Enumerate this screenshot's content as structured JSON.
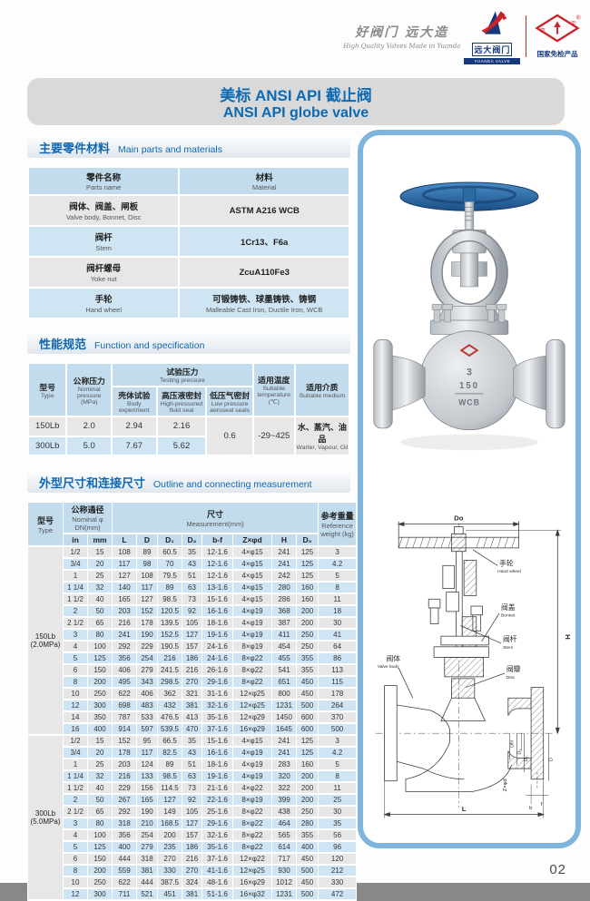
{
  "page": {
    "number": "02",
    "slogan_cn": "好阀门 远大造",
    "slogan_en": "High Quality Valves Made in Yuanda",
    "logo1_cn": "远大阀门",
    "logo1_en": "YUANDA VALVE",
    "logo2_text": "国家免检产品",
    "logo2_reg": "®",
    "title_cn": "美标 ANSI API 截止阀",
    "title_en": "ANSI API globe valve"
  },
  "colors": {
    "accent_blue": "#1068b0",
    "table_header_bg": "#c2dcee",
    "row_blue": "#cfe5f3",
    "row_gray": "#e7e7e7",
    "panel_border": "#7fb5dc",
    "title_bar_bg": "#d9d9d9",
    "logo_red": "#cc2229",
    "logo_dark_blue": "#16387c"
  },
  "sections": {
    "parts": {
      "cn": "主要零件材料",
      "en": "Main parts and materials"
    },
    "spec": {
      "cn": "性能规范",
      "en": "Function and specification"
    },
    "outline": {
      "cn": "外型尺寸和连接尺寸",
      "en": "Outline and connecting measurement"
    }
  },
  "materials_table": {
    "col1_cn": "零件名称",
    "col1_en": "Parts name",
    "col2_cn": "材料",
    "col2_en": "Material",
    "rows": [
      {
        "part_cn": "阀体、阀盖、闸板",
        "part_en": "Valve body, Bonnet, Disc",
        "mat_cn": "ASTM A216 WCB",
        "mat_en": ""
      },
      {
        "part_cn": "阀杆",
        "part_en": "Stem",
        "mat_cn": "1Cr13、F6a",
        "mat_en": ""
      },
      {
        "part_cn": "阀杆螺母",
        "part_en": "Yoke nut",
        "mat_cn": "ZcuA110Fe3",
        "mat_en": ""
      },
      {
        "part_cn": "手轮",
        "part_en": "Hand wheel",
        "mat_cn": "可锻铸铁、球墨铸铁、铸钢",
        "mat_en": "Malleable Cast Iron, Ductile Iron, WCB"
      }
    ]
  },
  "spec_table": {
    "type_cn": "型号",
    "type_en": "Type",
    "np_cn": "公称压力",
    "np_en": "Nominal pressure",
    "np_unit": "(MPa)",
    "tp_cn": "试验压力",
    "tp_en": "Testing pressure",
    "body_cn": "壳体试验",
    "body_en": "Body experiment",
    "hp_cn": "高压液密封",
    "hp_en": "High-pressured fluid seal",
    "lp_cn": "低压气密封",
    "lp_en": "Low pressure aeroseal seals",
    "temp_cn": "适用温度",
    "temp_en": "Suitable temperature",
    "temp_unit": "(℃)",
    "med_cn": "适用介质",
    "med_en": "Suitable medium",
    "r150": {
      "type": "150Lb",
      "np": "2.0",
      "body": "2.94",
      "hp": "2.16"
    },
    "r300": {
      "type": "300Lb",
      "np": "5.0",
      "body": "7.67",
      "hp": "5.62"
    },
    "lp_val": "0.6",
    "temp_val": "-29~425",
    "med_val_cn": "水、蒸汽、油品",
    "med_val_en": "Warter, Vapour, Oil"
  },
  "dims_table": {
    "type_cn": "型号",
    "type_en": "Type",
    "dn_cn": "公称通径",
    "dn_en": "Nominal φ DN(mm)",
    "meas_cn": "尺寸",
    "meas_en": "Measurement(mm)",
    "wt_cn": "参考重量",
    "wt_en": "Reference",
    "wt_en2": "weight (kg)",
    "cols": [
      "in",
      "mm",
      "L",
      "D",
      "D₁",
      "D₂",
      "b-f",
      "Z×φd",
      "H",
      "D₀"
    ],
    "groups": [
      {
        "label": "150Lb",
        "sub": "(2.0MPa)",
        "rows": [
          [
            "1/2",
            "15",
            "108",
            "89",
            "60.5",
            "35",
            "12-1.6",
            "4×φ15",
            "241",
            "125",
            "3"
          ],
          [
            "3/4",
            "20",
            "117",
            "98",
            "70",
            "43",
            "12-1.6",
            "4×φ15",
            "241",
            "125",
            "4.2"
          ],
          [
            "1",
            "25",
            "127",
            "108",
            "79.5",
            "51",
            "12-1.6",
            "4×φ15",
            "242",
            "125",
            "5"
          ],
          [
            "1 1/4",
            "32",
            "140",
            "117",
            "89",
            "63",
            "13-1.6",
            "4×φ15",
            "280",
            "160",
            "8"
          ],
          [
            "1 1/2",
            "40",
            "165",
            "127",
            "98.5",
            "73",
            "15-1.6",
            "4×φ15",
            "286",
            "160",
            "11"
          ],
          [
            "2",
            "50",
            "203",
            "152",
            "120.5",
            "92",
            "16-1.6",
            "4×φ19",
            "368",
            "200",
            "18"
          ],
          [
            "2 1/2",
            "65",
            "216",
            "178",
            "139.5",
            "105",
            "18-1.6",
            "4×φ19",
            "387",
            "200",
            "30"
          ],
          [
            "3",
            "80",
            "241",
            "190",
            "152.5",
            "127",
            "19-1.6",
            "4×φ19",
            "411",
            "250",
            "41"
          ],
          [
            "4",
            "100",
            "292",
            "229",
            "190.5",
            "157",
            "24-1.6",
            "8×φ19",
            "454",
            "250",
            "64"
          ],
          [
            "5",
            "125",
            "356",
            "254",
            "216",
            "186",
            "24-1.6",
            "8×φ22",
            "455",
            "355",
            "86"
          ],
          [
            "6",
            "150",
            "406",
            "279",
            "241.5",
            "216",
            "26-1.6",
            "8×φ22",
            "541",
            "355",
            "113"
          ],
          [
            "8",
            "200",
            "495",
            "343",
            "298.5",
            "270",
            "29-1.6",
            "8×φ22",
            "651",
            "450",
            "115"
          ],
          [
            "10",
            "250",
            "622",
            "406",
            "362",
            "321",
            "31-1.6",
            "12×φ25",
            "800",
            "450",
            "178"
          ],
          [
            "12",
            "300",
            "698",
            "483",
            "432",
            "381",
            "32-1.6",
            "12×φ25",
            "1231",
            "500",
            "264"
          ],
          [
            "14",
            "350",
            "787",
            "533",
            "476.5",
            "413",
            "35-1.6",
            "12×φ29",
            "1450",
            "600",
            "370"
          ],
          [
            "16",
            "400",
            "914",
            "597",
            "539.5",
            "470",
            "37-1.6",
            "16×φ29",
            "1645",
            "600",
            "500"
          ]
        ]
      },
      {
        "label": "300Lb",
        "sub": "(5.0MPa)",
        "rows": [
          [
            "1/2",
            "15",
            "152",
            "95",
            "66.5",
            "35",
            "15-1.6",
            "4×φ15",
            "241",
            "125",
            "3"
          ],
          [
            "3/4",
            "20",
            "178",
            "117",
            "82.5",
            "43",
            "16-1.6",
            "4×φ19",
            "241",
            "125",
            "4.2"
          ],
          [
            "1",
            "25",
            "203",
            "124",
            "89",
            "51",
            "18-1.6",
            "4×φ19",
            "283",
            "160",
            "5"
          ],
          [
            "1 1/4",
            "32",
            "216",
            "133",
            "98.5",
            "63",
            "19-1.6",
            "4×φ19",
            "320",
            "200",
            "8"
          ],
          [
            "1 1/2",
            "40",
            "229",
            "156",
            "114.5",
            "73",
            "21-1.6",
            "4×φ22",
            "322",
            "200",
            "11"
          ],
          [
            "2",
            "50",
            "267",
            "165",
            "127",
            "92",
            "22-1.6",
            "8×φ19",
            "399",
            "200",
            "25"
          ],
          [
            "2 1/2",
            "65",
            "292",
            "190",
            "149",
            "105",
            "25-1.6",
            "8×φ22",
            "438",
            "250",
            "30"
          ],
          [
            "3",
            "80",
            "318",
            "210",
            "168.5",
            "127",
            "29-1.6",
            "8×φ22",
            "464",
            "280",
            "35"
          ],
          [
            "4",
            "100",
            "356",
            "254",
            "200",
            "157",
            "32-1.6",
            "8×φ22",
            "565",
            "355",
            "56"
          ],
          [
            "5",
            "125",
            "400",
            "279",
            "235",
            "186",
            "35-1.6",
            "8×φ22",
            "614",
            "400",
            "96"
          ],
          [
            "6",
            "150",
            "444",
            "318",
            "270",
            "216",
            "37-1.6",
            "12×φ22",
            "717",
            "450",
            "120"
          ],
          [
            "8",
            "200",
            "559",
            "381",
            "330",
            "270",
            "41-1.6",
            "12×φ25",
            "930",
            "500",
            "212"
          ],
          [
            "10",
            "250",
            "622",
            "444",
            "387.5",
            "324",
            "48-1.6",
            "16×φ29",
            "1012",
            "450",
            "330"
          ],
          [
            "12",
            "300",
            "711",
            "521",
            "451",
            "381",
            "51-1.6",
            "16×φ32",
            "1231",
            "500",
            "472"
          ]
        ]
      }
    ]
  },
  "photo": {
    "markings": {
      "size": "3",
      "cls": "150",
      "mat": "WCB"
    }
  },
  "drawing": {
    "dims": {
      "do": "Do",
      "h": "H",
      "l": "L",
      "zxd": "Z×φd",
      "b": "b",
      "f": "f",
      "d": "D",
      "d1": "D₁",
      "d2": "D₂",
      "dn": "DN"
    },
    "labels": {
      "hand_cn": "手轮",
      "hand_en": "Hand wheel",
      "bonnet_cn": "阀盖",
      "bonnet_en": "Bonnet",
      "stem_cn": "阀杆",
      "stem_en": "Stem",
      "disc_cn": "阀瓣",
      "disc_en": "Disc",
      "body_cn": "阀体",
      "body_en": "Valve body"
    }
  }
}
